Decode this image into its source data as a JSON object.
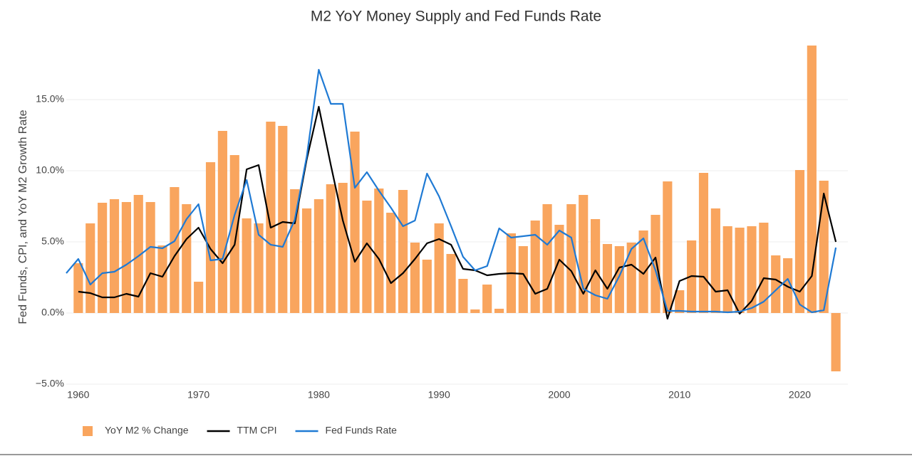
{
  "chart_data": {
    "type": "bar",
    "title": "M2 YoY Money Supply and Fed Funds Rate",
    "y_label": "Fed Funds, CPI, and YoY M2 Growth Rate",
    "x": [
      1959,
      1960,
      1961,
      1962,
      1963,
      1964,
      1965,
      1966,
      1967,
      1968,
      1969,
      1970,
      1971,
      1972,
      1973,
      1974,
      1975,
      1976,
      1977,
      1978,
      1979,
      1980,
      1981,
      1982,
      1983,
      1984,
      1985,
      1986,
      1987,
      1988,
      1989,
      1990,
      1991,
      1992,
      1993,
      1994,
      1995,
      1996,
      1997,
      1998,
      1999,
      2000,
      2001,
      2002,
      2003,
      2004,
      2005,
      2006,
      2007,
      2008,
      2009,
      2010,
      2011,
      2012,
      2013,
      2014,
      2015,
      2016,
      2017,
      2018,
      2019,
      2020,
      2021,
      2022,
      2023
    ],
    "series": [
      {
        "name": "YoY M2 % Change",
        "type": "bar",
        "color": "#f9a55e",
        "values": [
          null,
          3.5,
          6.3,
          7.75,
          8.0,
          7.8,
          8.3,
          7.8,
          4.75,
          8.85,
          7.65,
          2.2,
          10.6,
          12.8,
          11.1,
          6.65,
          6.3,
          13.45,
          13.15,
          8.7,
          7.35,
          8.0,
          9.05,
          9.15,
          12.75,
          7.9,
          8.75,
          7.05,
          8.65,
          4.95,
          3.75,
          6.3,
          4.15,
          2.4,
          0.25,
          2.0,
          0.3,
          5.6,
          4.7,
          6.5,
          7.65,
          6.2,
          7.65,
          8.3,
          6.6,
          4.85,
          4.7,
          4.95,
          5.8,
          6.9,
          9.25,
          1.6,
          5.1,
          9.85,
          7.35,
          6.1,
          6.0,
          6.1,
          6.35,
          4.05,
          3.85,
          10.05,
          18.8,
          9.3,
          -4.1
        ]
      },
      {
        "name": "TTM CPI",
        "type": "line",
        "color": "#000000",
        "values": [
          null,
          1.5,
          1.4,
          1.1,
          1.1,
          1.35,
          1.15,
          2.8,
          2.55,
          4.0,
          5.2,
          6.0,
          4.5,
          3.5,
          4.8,
          10.1,
          10.4,
          6.0,
          6.4,
          6.3,
          10.8,
          14.5,
          10.4,
          6.5,
          3.6,
          4.9,
          3.8,
          2.1,
          2.8,
          3.8,
          4.9,
          5.2,
          4.8,
          3.1,
          3.0,
          2.65,
          2.75,
          2.8,
          2.75,
          1.35,
          1.7,
          3.75,
          2.95,
          1.35,
          3.0,
          1.7,
          3.2,
          3.4,
          2.75,
          3.9,
          -0.4,
          2.25,
          2.6,
          2.55,
          1.5,
          1.6,
          -0.05,
          0.85,
          2.45,
          2.35,
          1.85,
          1.5,
          2.6,
          8.4,
          5.0
        ]
      },
      {
        "name": "Fed Funds Rate",
        "type": "line",
        "color": "#1f7ad4",
        "values": [
          2.8,
          3.8,
          2.0,
          2.8,
          2.9,
          3.4,
          4.0,
          4.65,
          4.55,
          5.05,
          6.6,
          7.65,
          3.7,
          3.8,
          6.9,
          9.35,
          5.5,
          4.8,
          4.65,
          6.55,
          11.0,
          17.1,
          14.7,
          14.7,
          8.8,
          9.9,
          8.6,
          7.4,
          6.1,
          6.5,
          9.8,
          8.2,
          6.1,
          3.95,
          3.0,
          3.3,
          5.95,
          5.3,
          5.4,
          5.5,
          4.8,
          5.8,
          5.3,
          1.7,
          1.25,
          1.0,
          2.6,
          4.5,
          5.25,
          3.0,
          0.15,
          0.15,
          0.1,
          0.1,
          0.1,
          0.05,
          0.1,
          0.35,
          0.8,
          1.6,
          2.4,
          0.6,
          0.05,
          0.2,
          4.6
        ]
      }
    ],
    "xlim": [
      1959,
      2024
    ],
    "xticks": [
      1960,
      1970,
      1980,
      1990,
      2000,
      2010,
      2020
    ],
    "ylim": [
      -5,
      20
    ],
    "yticks": [
      {
        "value": -5,
        "label": "−5.0%"
      },
      {
        "value": 0,
        "label": "0.0%"
      },
      {
        "value": 5,
        "label": "5.0%"
      },
      {
        "value": 10,
        "label": "10.0%"
      },
      {
        "value": 15,
        "label": "15.0%"
      }
    ],
    "legend": "bottom-left"
  }
}
